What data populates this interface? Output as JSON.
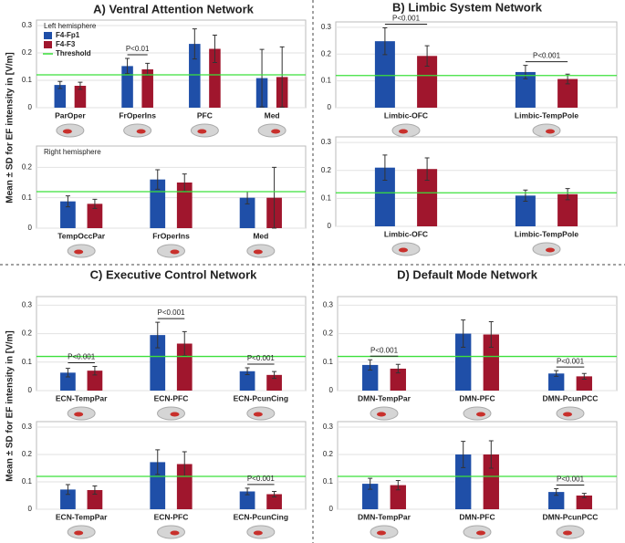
{
  "chart_data": [
    {
      "type": "bar",
      "title": "A) Ventral Attention Network",
      "ylabel": "Mean ± SD for EF intensity in [V/m]",
      "note": "Left hemisphere",
      "categories": [
        "ParOper",
        "FrOperIns",
        "PFC",
        "Med"
      ],
      "series": [
        {
          "name": "F4-Fp1",
          "color": "#1f4fa8",
          "values": [
            0.083,
            0.152,
            0.233,
            0.108
          ],
          "errors": [
            0.013,
            0.028,
            0.055,
            0.105
          ]
        },
        {
          "name": "F4-F3",
          "color": "#a0162d",
          "values": [
            0.08,
            0.14,
            0.215,
            0.112
          ],
          "errors": [
            0.013,
            0.022,
            0.05,
            0.11
          ]
        }
      ],
      "threshold": {
        "value": 0.12,
        "label": "Threshold",
        "color": "#3be03b"
      },
      "annotations": [
        {
          "text": "P<0.01",
          "category": 1
        }
      ],
      "ylim": [
        0,
        0.32
      ],
      "yticks": [
        0,
        0.1,
        0.2,
        0.3
      ],
      "grid": true
    },
    {
      "type": "bar",
      "note": "Right hemisphere",
      "categories": [
        "TempOccPar",
        "FrOperIns",
        "Med"
      ],
      "series": [
        {
          "color": "#1f4fa8",
          "values": [
            0.088,
            0.16,
            0.1
          ],
          "errors": [
            0.018,
            0.032,
            0.02
          ]
        },
        {
          "color": "#a0162d",
          "values": [
            0.08,
            0.15,
            0.1
          ],
          "errors": [
            0.015,
            0.028,
            0.1
          ]
        }
      ],
      "threshold": {
        "value": 0.12,
        "color": "#3be03b"
      },
      "annotations": [],
      "ylim": [
        0,
        0.27
      ],
      "yticks": [
        0,
        0.1,
        0.2
      ],
      "grid": true
    },
    {
      "type": "bar",
      "title": "B) Limbic System Network",
      "categories": [
        "Limbic-OFC",
        "Limbic-TempPole"
      ],
      "series": [
        {
          "color": "#1f4fa8",
          "values": [
            0.248,
            0.133
          ],
          "errors": [
            0.05,
            0.025
          ]
        },
        {
          "color": "#a0162d",
          "values": [
            0.193,
            0.107
          ],
          "errors": [
            0.038,
            0.018
          ]
        }
      ],
      "threshold": {
        "value": 0.12,
        "color": "#3be03b"
      },
      "annotations": [
        {
          "text": "P<0.001",
          "category": 0
        },
        {
          "text": "P<0.001",
          "category": 1
        }
      ],
      "ylim": [
        0,
        0.32
      ],
      "yticks": [
        0,
        0.1,
        0.2,
        0.3
      ],
      "grid": true
    },
    {
      "type": "bar",
      "categories": [
        "Limbic-OFC",
        "Limbic-TempPole"
      ],
      "series": [
        {
          "color": "#1f4fa8",
          "values": [
            0.21,
            0.11
          ],
          "errors": [
            0.045,
            0.02
          ]
        },
        {
          "color": "#a0162d",
          "values": [
            0.205,
            0.115
          ],
          "errors": [
            0.04,
            0.02
          ]
        }
      ],
      "threshold": {
        "value": 0.12,
        "color": "#3be03b"
      },
      "annotations": [],
      "ylim": [
        0,
        0.32
      ],
      "yticks": [
        0,
        0.1,
        0.2,
        0.3
      ],
      "grid": true
    },
    {
      "type": "bar",
      "title": "C) Executive Control Network",
      "ylabel": "Mean ± SD for EF intensity in [V/m]",
      "categories": [
        "ECN-TempPar",
        "ECN-PFC",
        "ECN-PcunCing"
      ],
      "series": [
        {
          "color": "#1f4fa8",
          "values": [
            0.063,
            0.195,
            0.068
          ],
          "errors": [
            0.015,
            0.045,
            0.012
          ]
        },
        {
          "color": "#a0162d",
          "values": [
            0.07,
            0.165,
            0.055
          ],
          "errors": [
            0.015,
            0.042,
            0.012
          ]
        }
      ],
      "threshold": {
        "value": 0.12,
        "color": "#3be03b"
      },
      "annotations": [
        {
          "text": "P<0.001",
          "category": 0
        },
        {
          "text": "P<0.001",
          "category": 1
        },
        {
          "text": "P<0.001",
          "category": 2
        }
      ],
      "ylim": [
        0,
        0.33
      ],
      "yticks": [
        0,
        0.1,
        0.2,
        0.3
      ],
      "grid": true
    },
    {
      "type": "bar",
      "categories": [
        "ECN-TempPar",
        "ECN-PFC",
        "ECN-PcunCing"
      ],
      "series": [
        {
          "color": "#1f4fa8",
          "values": [
            0.072,
            0.172,
            0.065
          ],
          "errors": [
            0.018,
            0.045,
            0.012
          ]
        },
        {
          "color": "#a0162d",
          "values": [
            0.07,
            0.165,
            0.055
          ],
          "errors": [
            0.015,
            0.045,
            0.01
          ]
        }
      ],
      "threshold": {
        "value": 0.12,
        "color": "#3be03b"
      },
      "annotations": [
        {
          "text": "P<0.001",
          "category": 2
        }
      ],
      "ylim": [
        0,
        0.32
      ],
      "yticks": [
        0,
        0.1,
        0.2,
        0.3
      ],
      "grid": true
    },
    {
      "type": "bar",
      "title": "D) Default Mode Network",
      "categories": [
        "DMN-TempPar",
        "DMN-PFC",
        "DMN-PcunPCC"
      ],
      "series": [
        {
          "color": "#1f4fa8",
          "values": [
            0.09,
            0.2,
            0.06
          ],
          "errors": [
            0.018,
            0.048,
            0.01
          ]
        },
        {
          "color": "#a0162d",
          "values": [
            0.077,
            0.197,
            0.05
          ],
          "errors": [
            0.015,
            0.045,
            0.01
          ]
        }
      ],
      "threshold": {
        "value": 0.12,
        "color": "#3be03b"
      },
      "annotations": [
        {
          "text": "P<0.001",
          "category": 0
        },
        {
          "text": "P<0.001",
          "category": 2
        }
      ],
      "ylim": [
        0,
        0.33
      ],
      "yticks": [
        0,
        0.1,
        0.2,
        0.3
      ],
      "grid": true
    },
    {
      "type": "bar",
      "categories": [
        "DMN-TempPar",
        "DMN-PFC",
        "DMN-PcunPCC"
      ],
      "series": [
        {
          "color": "#1f4fa8",
          "values": [
            0.093,
            0.2,
            0.063
          ],
          "errors": [
            0.02,
            0.048,
            0.012
          ]
        },
        {
          "color": "#a0162d",
          "values": [
            0.088,
            0.2,
            0.05
          ],
          "errors": [
            0.017,
            0.05,
            0.008
          ]
        }
      ],
      "threshold": {
        "value": 0.12,
        "color": "#3be03b"
      },
      "annotations": [
        {
          "text": "P<0.001",
          "category": 2
        }
      ],
      "ylim": [
        0,
        0.32
      ],
      "yticks": [
        0,
        0.1,
        0.2,
        0.3
      ],
      "grid": true
    }
  ]
}
